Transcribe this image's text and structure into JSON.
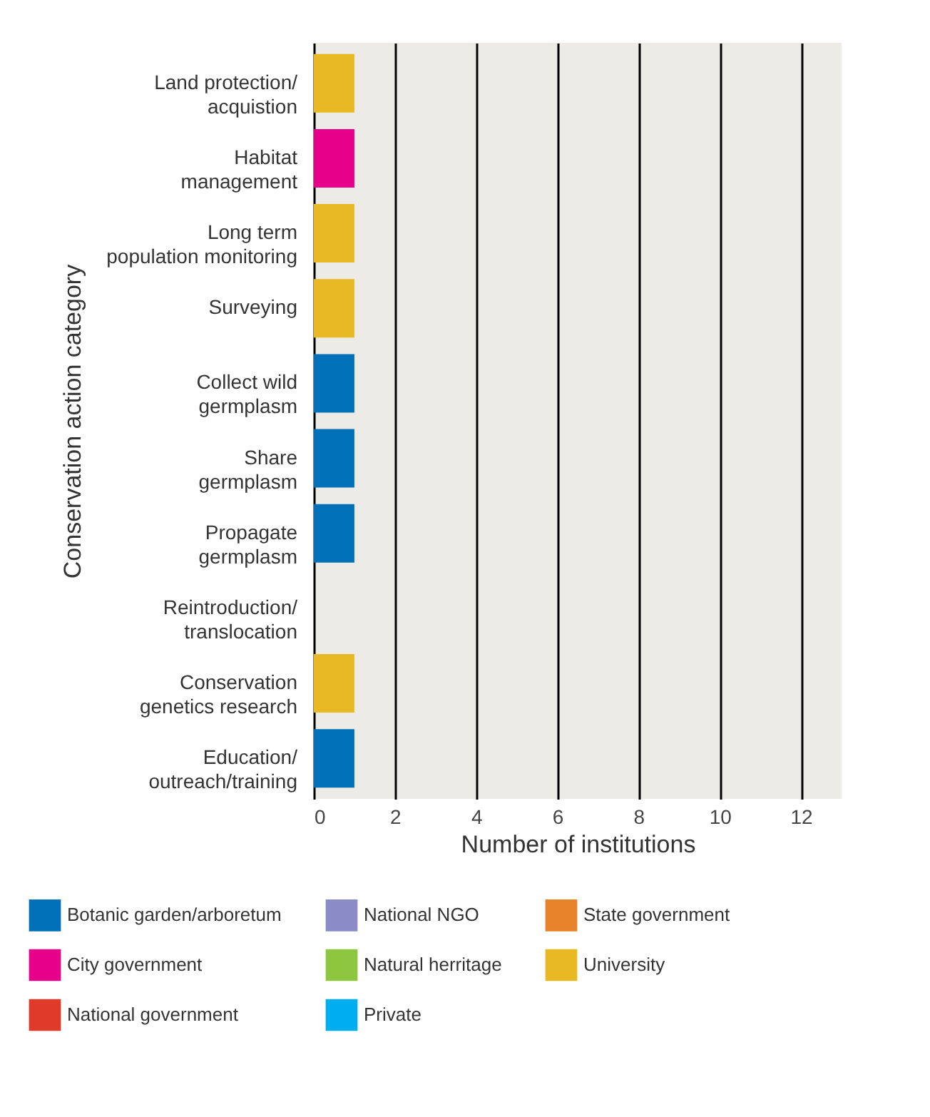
{
  "chart_data": {
    "type": "bar",
    "orientation": "horizontal",
    "categories": [
      "Land protection/\nacquistion",
      "Habitat\nmanagement",
      "Long term\npopulation monitoring",
      "Surveying",
      "Collect wild\ngermplasm",
      "Share\ngermplasm",
      "Propagate\ngermplasm",
      "Reintroduction/\ntranslocation",
      "Conservation\ngenetics research",
      "Education/\noutreach/training"
    ],
    "series": [
      {
        "name": "Botanic garden/arboretum",
        "color": "#0070b8",
        "values": [
          null,
          null,
          null,
          null,
          1,
          1,
          1,
          null,
          null,
          1
        ]
      },
      {
        "name": "National NGO",
        "color": "#8b8cc7",
        "values": [
          null,
          null,
          null,
          null,
          null,
          null,
          null,
          null,
          null,
          null
        ]
      },
      {
        "name": "State government",
        "color": "#e6832a",
        "values": [
          null,
          null,
          null,
          null,
          null,
          null,
          null,
          null,
          null,
          null
        ]
      },
      {
        "name": "City government",
        "color": "#e6008a",
        "values": [
          null,
          1,
          null,
          null,
          null,
          null,
          null,
          null,
          null,
          null
        ]
      },
      {
        "name": "Natural herritage",
        "color": "#8dc63f",
        "values": [
          null,
          null,
          null,
          null,
          null,
          null,
          null,
          null,
          null,
          null
        ]
      },
      {
        "name": "University",
        "color": "#e8b923",
        "values": [
          1,
          null,
          1,
          1,
          null,
          null,
          null,
          null,
          1,
          null
        ]
      },
      {
        "name": "National government",
        "color": "#e03a2a",
        "values": [
          null,
          null,
          null,
          null,
          null,
          null,
          null,
          null,
          null,
          null
        ]
      },
      {
        "name": "Private",
        "color": "#00aeef",
        "values": [
          null,
          null,
          null,
          null,
          null,
          null,
          null,
          null,
          null,
          null
        ]
      }
    ],
    "xlabel": "Number of institutions",
    "ylabel": "Conservation action category",
    "xlim": [
      0,
      13
    ],
    "xticks": [
      0,
      2,
      4,
      6,
      8,
      10,
      12
    ],
    "grid": "x",
    "legend": "bottom"
  }
}
